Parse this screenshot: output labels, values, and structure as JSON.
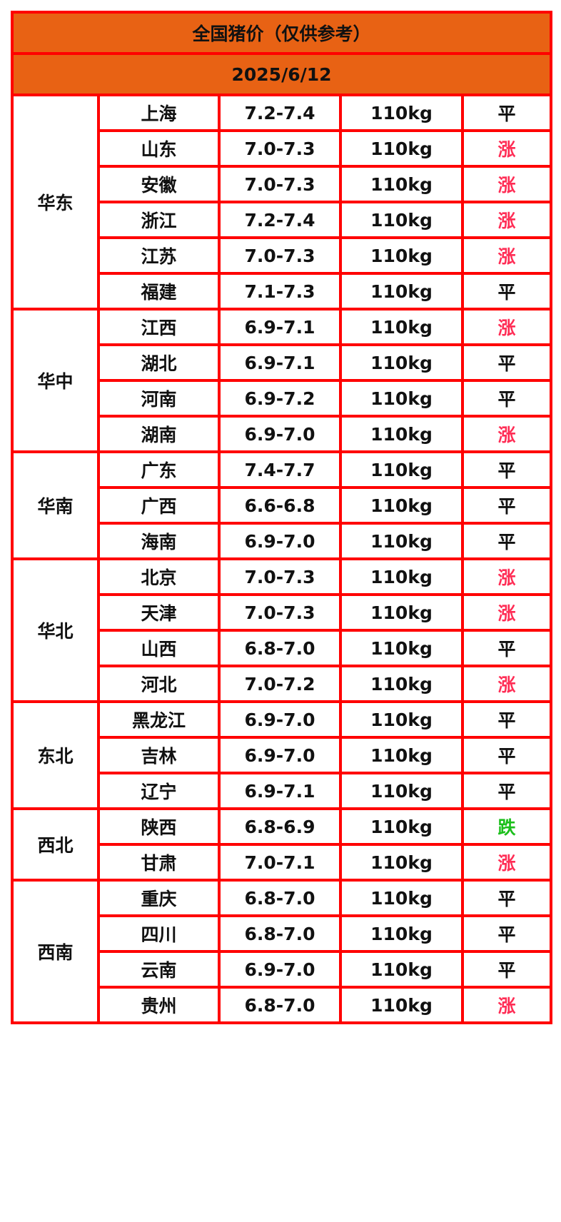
{
  "title": "全国猪价（仅供参考）",
  "date": "2025/6/12",
  "colors": {
    "header_bg": "#e86214",
    "border": "#ff0000",
    "up": "#ff2d55",
    "down": "#1bbf1b",
    "flat": "#111111"
  },
  "regions": [
    {
      "name": "华东",
      "rows": [
        {
          "province": "上海",
          "price": "7.2-7.4",
          "weight": "110kg",
          "trend": "平"
        },
        {
          "province": "山东",
          "price": "7.0-7.3",
          "weight": "110kg",
          "trend": "涨"
        },
        {
          "province": "安徽",
          "price": "7.0-7.3",
          "weight": "110kg",
          "trend": "涨"
        },
        {
          "province": "浙江",
          "price": "7.2-7.4",
          "weight": "110kg",
          "trend": "涨"
        },
        {
          "province": "江苏",
          "price": "7.0-7.3",
          "weight": "110kg",
          "trend": "涨"
        },
        {
          "province": "福建",
          "price": "7.1-7.3",
          "weight": "110kg",
          "trend": "平"
        }
      ]
    },
    {
      "name": "华中",
      "rows": [
        {
          "province": "江西",
          "price": "6.9-7.1",
          "weight": "110kg",
          "trend": "涨"
        },
        {
          "province": "湖北",
          "price": "6.9-7.1",
          "weight": "110kg",
          "trend": "平"
        },
        {
          "province": "河南",
          "price": "6.9-7.2",
          "weight": "110kg",
          "trend": "平"
        },
        {
          "province": "湖南",
          "price": "6.9-7.0",
          "weight": "110kg",
          "trend": "涨"
        }
      ]
    },
    {
      "name": "华南",
      "rows": [
        {
          "province": "广东",
          "price": "7.4-7.7",
          "weight": "110kg",
          "trend": "平"
        },
        {
          "province": "广西",
          "price": "6.6-6.8",
          "weight": "110kg",
          "trend": "平"
        },
        {
          "province": "海南",
          "price": "6.9-7.0",
          "weight": "110kg",
          "trend": "平"
        }
      ]
    },
    {
      "name": "华北",
      "rows": [
        {
          "province": "北京",
          "price": "7.0-7.3",
          "weight": "110kg",
          "trend": "涨"
        },
        {
          "province": "天津",
          "price": "7.0-7.3",
          "weight": "110kg",
          "trend": "涨"
        },
        {
          "province": "山西",
          "price": "6.8-7.0",
          "weight": "110kg",
          "trend": "平"
        },
        {
          "province": "河北",
          "price": "7.0-7.2",
          "weight": "110kg",
          "trend": "涨"
        }
      ]
    },
    {
      "name": "东北",
      "rows": [
        {
          "province": "黑龙江",
          "price": "6.9-7.0",
          "weight": "110kg",
          "trend": "平"
        },
        {
          "province": "吉林",
          "price": "6.9-7.0",
          "weight": "110kg",
          "trend": "平"
        },
        {
          "province": "辽宁",
          "price": "6.9-7.1",
          "weight": "110kg",
          "trend": "平"
        }
      ]
    },
    {
      "name": "西北",
      "rows": [
        {
          "province": "陕西",
          "price": "6.8-6.9",
          "weight": "110kg",
          "trend": "跌"
        },
        {
          "province": "甘肃",
          "price": "7.0-7.1",
          "weight": "110kg",
          "trend": "涨"
        }
      ]
    },
    {
      "name": "西南",
      "rows": [
        {
          "province": "重庆",
          "price": "6.8-7.0",
          "weight": "110kg",
          "trend": "平"
        },
        {
          "province": "四川",
          "price": "6.8-7.0",
          "weight": "110kg",
          "trend": "平"
        },
        {
          "province": "云南",
          "price": "6.9-7.0",
          "weight": "110kg",
          "trend": "平"
        },
        {
          "province": "贵州",
          "price": "6.8-7.0",
          "weight": "110kg",
          "trend": "涨"
        }
      ]
    }
  ]
}
